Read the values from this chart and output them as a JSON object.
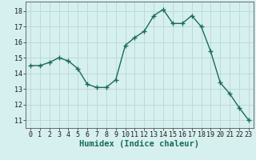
{
  "x": [
    0,
    1,
    2,
    3,
    4,
    5,
    6,
    7,
    8,
    9,
    10,
    11,
    12,
    13,
    14,
    15,
    16,
    17,
    18,
    19,
    20,
    21,
    22,
    23
  ],
  "y": [
    14.5,
    14.5,
    14.7,
    15.0,
    14.8,
    14.3,
    13.3,
    13.1,
    13.1,
    13.6,
    15.8,
    16.3,
    16.7,
    17.7,
    18.1,
    17.2,
    17.2,
    17.7,
    17.0,
    15.4,
    13.4,
    12.7,
    11.8,
    11.0
  ],
  "line_color": "#1a6b5a",
  "marker": "+",
  "marker_size": 4,
  "bg_color": "#d6f0ef",
  "grid_color": "#b8d8d5",
  "xlabel": "Humidex (Indice chaleur)",
  "xlim": [
    -0.5,
    23.5
  ],
  "ylim": [
    10.5,
    18.6
  ],
  "yticks": [
    11,
    12,
    13,
    14,
    15,
    16,
    17,
    18
  ],
  "xticks": [
    0,
    1,
    2,
    3,
    4,
    5,
    6,
    7,
    8,
    9,
    10,
    11,
    12,
    13,
    14,
    15,
    16,
    17,
    18,
    19,
    20,
    21,
    22,
    23
  ],
  "tick_fontsize": 6,
  "label_fontsize": 7.5
}
